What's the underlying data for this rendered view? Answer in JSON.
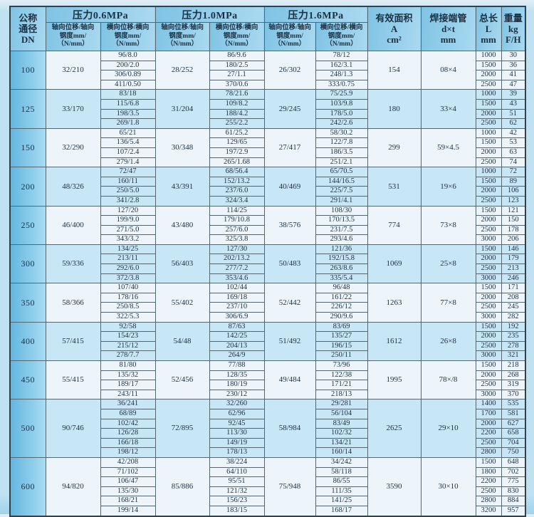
{
  "colors": {
    "page_bg": "#c0e1f2",
    "header_blue_dark": "#7fc3e4",
    "header_blue_light": "#a9d9f0",
    "dn_column_blue_dark": "#62b7e0",
    "dn_column_blue_light": "#a9dcf3",
    "group_row_light": "#edf5fa",
    "group_row_blue": "#c7e6f6",
    "grid_line": "#54666f",
    "text": "#1d3042"
  },
  "header": {
    "dn": "公称\n通径\nDN",
    "pressures": [
      {
        "label": "压力0.6MPa",
        "axial": "轴向位移/轴向\n钢度mm/\n（N/mm）",
        "lateral": "横向位移/横向\n钢度mm/\n（N/mm）"
      },
      {
        "label": "压力1.0MPa",
        "axial": "轴向位移/轴向\n钢度mm/\n（N/mm）",
        "lateral": "横向位移/横向\n钢度mm/\n（N/mm）"
      },
      {
        "label": "压力1.6MPa",
        "axial": "轴向位移/轴向\n钢度mm/\n（N/mm）",
        "lateral": "横向位移/横向\n钢度mm/\n（N/mm）"
      }
    ],
    "area": "有效面积\nA\ncm²",
    "pipe": "焊接端管\nd×t\nmm",
    "length": "总长\nL\nmm",
    "weight": "重量\nkg\nF/H"
  },
  "groups": [
    {
      "dn": "100",
      "p06_axial": "32/210",
      "p06_lateral": [
        "96/8.0",
        "200/2.0",
        "306/0.89",
        "411/0.50"
      ],
      "p10_axial": "28/252",
      "p10_lateral": [
        "86/9.6",
        "180/2.5",
        "27/1.1",
        "370/0.6"
      ],
      "p16_axial": "26/302",
      "p16_lateral": [
        "78/12",
        "162/3.1",
        "248/1.3",
        "333/0.75"
      ],
      "area": "154",
      "pipe": "08×4",
      "rows": [
        {
          "L": "1000",
          "W": "30"
        },
        {
          "L": "1500",
          "W": "36"
        },
        {
          "L": "2000",
          "W": "41"
        },
        {
          "L": "2500",
          "W": "47"
        }
      ]
    },
    {
      "dn": "125",
      "p06_axial": "33/170",
      "p06_lateral": [
        "83/18",
        "115/6.8",
        "198/3.5",
        "269/1.8"
      ],
      "p10_axial": "31/204",
      "p10_lateral": [
        "78/21.6",
        "109/8.2",
        "188/4.2",
        "255/2.2"
      ],
      "p16_axial": "29/245",
      "p16_lateral": [
        "75/25.9",
        "103/9.8",
        "178/5.0",
        "242/2.6"
      ],
      "area": "180",
      "pipe": "33×4",
      "rows": [
        {
          "L": "1000",
          "W": "39"
        },
        {
          "L": "1500",
          "W": "43"
        },
        {
          "L": "2000",
          "W": "51"
        },
        {
          "L": "2500",
          "W": "62"
        }
      ]
    },
    {
      "dn": "150",
      "p06_axial": "32/290",
      "p06_lateral": [
        "65/21",
        "136/5.4",
        "107/2.4",
        "279/1.4"
      ],
      "p10_axial": "30/348",
      "p10_lateral": [
        "61/25.2",
        "129/65",
        "197/2.9",
        "265/1.68"
      ],
      "p16_axial": "27/417",
      "p16_lateral": [
        "58/30.2",
        "122/7.8",
        "186/3.5",
        "251/2.1"
      ],
      "area": "299",
      "pipe": "59×4.5",
      "rows": [
        {
          "L": "1000",
          "W": "42"
        },
        {
          "L": "1500",
          "W": "53"
        },
        {
          "L": "2000",
          "W": "63"
        },
        {
          "L": "2500",
          "W": "74"
        }
      ]
    },
    {
      "dn": "200",
      "p06_axial": "48/326",
      "p06_lateral": [
        "72/47",
        "160/11",
        "250/5.0",
        "341/2.8"
      ],
      "p10_axial": "43/391",
      "p10_lateral": [
        "68/56.4",
        "152/13.2",
        "237/6.0",
        "324/3.4"
      ],
      "p16_axial": "40/469",
      "p16_lateral": [
        "65/70.5",
        "144/16.5",
        "225/7.5",
        "291/4.1"
      ],
      "area": "531",
      "pipe": "19×6",
      "rows": [
        {
          "L": "1000",
          "W": "72"
        },
        {
          "L": "1500",
          "W": "89"
        },
        {
          "L": "2000",
          "W": "106"
        },
        {
          "L": "2500",
          "W": "123"
        }
      ]
    },
    {
      "dn": "250",
      "p06_axial": "46/400",
      "p06_lateral": [
        "127/20",
        "199/9.0",
        "271/5.0",
        "343/3.2"
      ],
      "p10_axial": "43/480",
      "p10_lateral": [
        "114/25",
        "179/10.8",
        "257/6.0",
        "325/3.8"
      ],
      "p16_axial": "38/576",
      "p16_lateral": [
        "108/30",
        "170/13.5",
        "231/7.5",
        "293/4.6"
      ],
      "area": "774",
      "pipe": "73×8",
      "rows": [
        {
          "L": "1500",
          "W": "121"
        },
        {
          "L": "2000",
          "W": "150"
        },
        {
          "L": "2500",
          "W": "178"
        },
        {
          "L": "3000",
          "W": "206"
        }
      ]
    },
    {
      "dn": "300",
      "p06_axial": "59/336",
      "p06_lateral": [
        "134/25",
        "213/11",
        "292/6.0",
        "372/3.8"
      ],
      "p10_axial": "56/403",
      "p10_lateral": [
        "127/30",
        "202/13.2",
        "277/7.2",
        "353/4.6"
      ],
      "p16_axial": "50/483",
      "p16_lateral": [
        "121/36",
        "192/15.8",
        "263/8.6",
        "335/5.4"
      ],
      "area": "1069",
      "pipe": "25×8",
      "rows": [
        {
          "L": "1500",
          "W": "146"
        },
        {
          "L": "2000",
          "W": "179"
        },
        {
          "L": "2500",
          "W": "213"
        },
        {
          "L": "3000",
          "W": "246"
        }
      ]
    },
    {
      "dn": "350",
      "p06_axial": "58/366",
      "p06_lateral": [
        "107/40",
        "178/16",
        "250/8.5",
        "322/5.3"
      ],
      "p10_axial": "55/402",
      "p10_lateral": [
        "102/44",
        "169/18",
        "237/10",
        "306/6.9"
      ],
      "p16_axial": "52/442",
      "p16_lateral": [
        "96/48",
        "161/22",
        "226/12",
        "290/9.6"
      ],
      "area": "1263",
      "pipe": "77×8",
      "rows": [
        {
          "L": "1500",
          "W": "171"
        },
        {
          "L": "2000",
          "W": "208"
        },
        {
          "L": "2500",
          "W": "245"
        },
        {
          "L": "3000",
          "W": "282"
        }
      ]
    },
    {
      "dn": "400",
      "p06_axial": "57/415",
      "p06_lateral": [
        "92/58",
        "154/23",
        "215/12",
        "278/7.7"
      ],
      "p10_axial": "54/48",
      "p10_lateral": [
        "87/63",
        "142/25",
        "204/13",
        "264/9"
      ],
      "p16_axial": "51/492",
      "p16_lateral": [
        "83/69",
        "135/27",
        "196/15",
        "250/11"
      ],
      "area": "1612",
      "pipe": "26×8",
      "rows": [
        {
          "L": "1500",
          "W": "192"
        },
        {
          "L": "2000",
          "W": "235"
        },
        {
          "L": "2500",
          "W": "278"
        },
        {
          "L": "3000",
          "W": "321"
        }
      ]
    },
    {
      "dn": "450",
      "p06_axial": "55/415",
      "p06_lateral": [
        "81/80",
        "135/32",
        "189/17",
        "243/11"
      ],
      "p10_axial": "52/456",
      "p10_lateral": [
        "77/88",
        "128/35",
        "180/19",
        "230/12"
      ],
      "p16_axial": "49/484",
      "p16_lateral": [
        "73/96",
        "122/38",
        "171/21",
        "218/13"
      ],
      "area": "1995",
      "pipe": "78×/8",
      "rows": [
        {
          "L": "1500",
          "W": "218"
        },
        {
          "L": "2000",
          "W": "268"
        },
        {
          "L": "2500",
          "W": "319"
        },
        {
          "L": "3000",
          "W": "370"
        }
      ]
    },
    {
      "dn": "500",
      "p06_axial": "90/746",
      "p06_lateral": [
        "36/241",
        "68/89",
        "102/42",
        "126/28",
        "166/18",
        "198/12"
      ],
      "p10_axial": "72/895",
      "p10_lateral": [
        "32/260",
        "62/96",
        "92/45",
        "113/30",
        "149/19",
        "178/13"
      ],
      "p16_axial": "58/984",
      "p16_lateral": [
        "29/281",
        "56/104",
        "83/49",
        "102/32",
        "134/21",
        "160/14"
      ],
      "area": "2625",
      "pipe": "29×10",
      "rows": [
        {
          "L": "1400",
          "W": "535"
        },
        {
          "L": "1700",
          "W": "581"
        },
        {
          "L": "2000",
          "W": "627"
        },
        {
          "L": "2200",
          "W": "658"
        },
        {
          "L": "2500",
          "W": "704"
        },
        {
          "L": "2800",
          "W": "750"
        }
      ]
    },
    {
      "dn": "600",
      "p06_axial": "94/820",
      "p06_lateral": [
        "42/208",
        "71/102",
        "106/47",
        "135/30",
        "168/21",
        "199/14"
      ],
      "p10_axial": "85/886",
      "p10_lateral": [
        "38/224",
        "64/110",
        "95/51",
        "121/32",
        "156/23",
        "183/15"
      ],
      "p16_axial": "75/948",
      "p16_lateral": [
        "34/242",
        "58/118",
        "86/55",
        "111/35",
        "141/25",
        "168/17"
      ],
      "area": "3590",
      "pipe": "30×10",
      "rows": [
        {
          "L": "1500",
          "W": "648"
        },
        {
          "L": "1800",
          "W": "702"
        },
        {
          "L": "2200",
          "W": "775"
        },
        {
          "L": "2500",
          "W": "830"
        },
        {
          "L": "2800",
          "W": "884"
        },
        {
          "L": "3200",
          "W": "957"
        }
      ]
    }
  ]
}
